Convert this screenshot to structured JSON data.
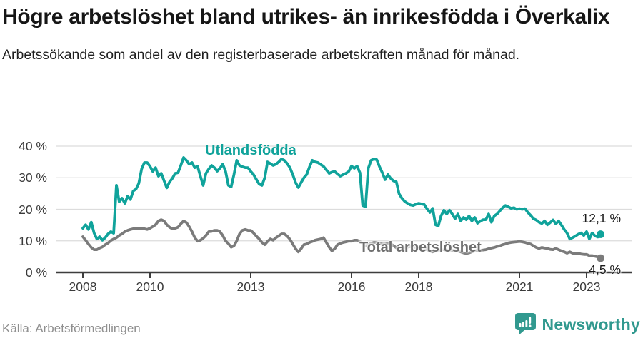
{
  "header": {
    "title": "Högre arbetslöshet bland utrikes- än inrikesfödda i Överkalix",
    "subtitle": "Arbetssökande som andel av den registerbaserade arbetskraften månad för månad."
  },
  "footer": {
    "source": "Källa: Arbetsförmedlingen",
    "brand": "Newsworthy"
  },
  "colors": {
    "teal": "#10a39b",
    "gray": "#7b7b7b",
    "grid": "#dcdcdc",
    "axis": "#3d3d3d",
    "logo_teal": "#31998f"
  },
  "chart_data": {
    "type": "line",
    "title": "Högre arbetslöshet bland utrikes- än inrikesfödda i Överkalix",
    "subtitle": "Arbetssökande som andel av den registerbaserade arbetskraften månad för månad.",
    "xlabel": "",
    "ylabel": "",
    "grid": true,
    "legend_position": "inline-labels",
    "frequency": "monthly",
    "x_start": {
      "year": 2008,
      "month": 1
    },
    "x_end": {
      "year": 2023,
      "month": 6
    },
    "ylim": [
      0,
      42
    ],
    "y_ticks": [
      {
        "value": 0,
        "label": "0 %"
      },
      {
        "value": 10,
        "label": "10 %"
      },
      {
        "value": 20,
        "label": "20 %"
      },
      {
        "value": 30,
        "label": "30 %"
      },
      {
        "value": 40,
        "label": "40 %"
      }
    ],
    "x_ticks": [
      {
        "year": 2008,
        "label": "2008"
      },
      {
        "year": 2010,
        "label": "2010"
      },
      {
        "year": 2013,
        "label": "2013"
      },
      {
        "year": 2016,
        "label": "2016"
      },
      {
        "year": 2018,
        "label": "2018"
      },
      {
        "year": 2021,
        "label": "2021"
      },
      {
        "year": 2023,
        "label": "2023"
      }
    ],
    "series": [
      {
        "id": "utlandsfodda",
        "name": "Utlandsfödda",
        "color": "#10a39b",
        "end_label": "12,1 %",
        "end_value": 12.1,
        "values": [
          14.0,
          15.1,
          13.6,
          15.9,
          12.5,
          10.6,
          11.3,
          10.2,
          11.0,
          12.2,
          12.9,
          12.4,
          27.6,
          22.4,
          23.5,
          21.9,
          24.2,
          23.1,
          25.8,
          26.4,
          28.2,
          32.8,
          34.8,
          34.8,
          33.6,
          32.0,
          33.2,
          30.5,
          31.4,
          29.1,
          26.8,
          28.7,
          29.8,
          31.4,
          31.6,
          33.9,
          36.4,
          35.5,
          34.3,
          34.8,
          33.2,
          33.6,
          30.5,
          27.6,
          31.4,
          32.8,
          33.9,
          33.2,
          32.1,
          33.0,
          34.3,
          32.0,
          27.6,
          27.1,
          31.0,
          35.5,
          33.9,
          33.5,
          33.2,
          33.2,
          32.0,
          31.0,
          29.5,
          28.0,
          27.6,
          30.0,
          35.0,
          34.5,
          33.9,
          34.3,
          35.0,
          35.9,
          35.5,
          34.5,
          33.2,
          31.0,
          28.5,
          26.9,
          28.5,
          30.0,
          31.0,
          33.5,
          35.5,
          35.0,
          34.8,
          34.2,
          33.6,
          32.5,
          31.4,
          31.8,
          32.0,
          31.2,
          30.5,
          31.0,
          31.4,
          32.0,
          33.7,
          33.0,
          33.7,
          31.6,
          21.2,
          20.8,
          33.0,
          35.5,
          35.9,
          35.7,
          33.5,
          31.6,
          29.4,
          31.0,
          29.8,
          29.0,
          28.7,
          24.9,
          23.5,
          22.5,
          21.9,
          21.4,
          21.2,
          21.6,
          21.9,
          21.7,
          21.5,
          20.1,
          19.0,
          20.3,
          15.1,
          14.7,
          17.9,
          19.7,
          18.5,
          19.7,
          18.5,
          17.0,
          18.5,
          16.3,
          17.4,
          16.7,
          17.9,
          16.3,
          17.4,
          15.6,
          16.2,
          16.7,
          16.7,
          18.5,
          15.9,
          17.9,
          18.5,
          19.5,
          20.5,
          21.2,
          20.8,
          20.3,
          20.5,
          20.0,
          20.2,
          20.0,
          20.2,
          19.0,
          18.1,
          17.0,
          16.6,
          15.9,
          15.5,
          16.3,
          15.1,
          15.8,
          16.6,
          15.4,
          16.3,
          15.0,
          13.6,
          12.5,
          10.6,
          11.0,
          11.5,
          12.1,
          12.5,
          11.7,
          12.9,
          10.6,
          12.5,
          11.6,
          11.2,
          12.1
        ]
      },
      {
        "id": "total",
        "name": "Total arbetslöshet",
        "color": "#7b7b7b",
        "end_label": "4,5 %",
        "end_value": 4.5,
        "values": [
          11.3,
          10.2,
          9.0,
          7.9,
          7.2,
          7.2,
          7.7,
          8.1,
          8.8,
          9.3,
          10.1,
          10.6,
          11.0,
          11.7,
          12.2,
          12.9,
          13.3,
          13.6,
          13.8,
          14.0,
          13.8,
          14.0,
          13.8,
          13.6,
          14.0,
          14.5,
          15.1,
          16.3,
          16.7,
          16.3,
          15.1,
          14.3,
          13.8,
          14.0,
          14.3,
          15.4,
          16.3,
          15.8,
          14.5,
          12.9,
          11.0,
          9.9,
          10.2,
          10.8,
          11.7,
          12.9,
          13.0,
          13.3,
          13.3,
          12.9,
          11.7,
          10.0,
          9.1,
          8.0,
          8.4,
          10.0,
          12.2,
          13.3,
          13.6,
          13.3,
          13.3,
          12.5,
          11.5,
          10.6,
          9.5,
          8.8,
          9.8,
          10.6,
          10.2,
          11.0,
          11.6,
          12.2,
          12.2,
          11.5,
          10.5,
          9.0,
          7.5,
          6.5,
          7.5,
          8.8,
          9.0,
          9.5,
          9.8,
          10.2,
          10.4,
          10.6,
          11.0,
          9.5,
          8.0,
          6.8,
          7.5,
          8.8,
          9.2,
          9.5,
          9.7,
          9.9,
          9.9,
          10.2,
          10.2,
          9.8,
          9.2,
          8.5,
          8.8,
          9.2,
          9.5,
          9.4,
          9.2,
          9.0,
          9.0,
          9.2,
          9.0,
          8.5,
          7.8,
          7.2,
          7.5,
          7.8,
          8.0,
          8.2,
          8.0,
          7.8,
          7.8,
          7.8,
          7.5,
          7.2,
          6.8,
          6.5,
          6.8,
          7.0,
          7.2,
          7.2,
          7.0,
          7.0,
          7.0,
          7.0,
          6.8,
          6.5,
          6.2,
          6.0,
          6.2,
          6.5,
          6.8,
          7.0,
          7.0,
          7.1,
          7.2,
          7.5,
          7.7,
          7.9,
          8.2,
          8.4,
          8.8,
          9.0,
          9.3,
          9.5,
          9.6,
          9.7,
          9.8,
          9.7,
          9.5,
          9.2,
          9.0,
          8.4,
          7.9,
          7.6,
          7.9,
          7.7,
          7.6,
          7.3,
          7.2,
          7.6,
          7.2,
          6.8,
          6.5,
          6.1,
          6.5,
          6.1,
          5.9,
          6.1,
          5.8,
          5.7,
          5.7,
          5.3,
          5.3,
          5.1,
          4.9,
          4.5
        ]
      }
    ]
  }
}
